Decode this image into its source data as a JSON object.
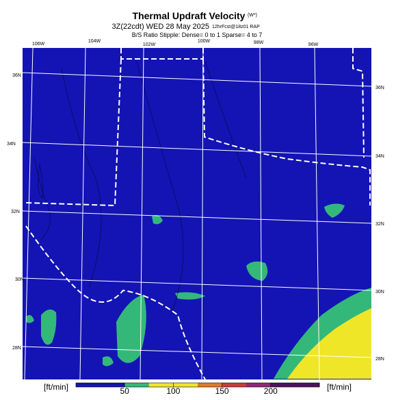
{
  "header": {
    "title": "Thermal Updraft Velocity",
    "title_unit": "(W*)",
    "subtitle_left": "3Z(22cdt) WED 28 May 2025",
    "subtitle_right": "12hrFcst@18z01 RAP",
    "note": "B/S Ratio Stipple: Dense= 0 to 1 Sparse= 4 to 7"
  },
  "map": {
    "lon_labels": [
      "106W",
      "104W",
      "102W",
      "100W",
      "98W",
      "96W"
    ],
    "lat_labels_left": [
      "36N",
      "34N",
      "32N",
      "30N",
      "28N"
    ],
    "lat_labels_right": [
      "36N",
      "34N",
      "32N",
      "30N",
      "28N"
    ]
  },
  "colorbar": {
    "unit": "[ft/min]",
    "range": [
      0,
      250
    ],
    "ticks": [
      50,
      100,
      150,
      200
    ],
    "colors": [
      "#1414b4",
      "#1414b4",
      "#34b87a",
      "#f0e628",
      "#f0e628",
      "#e07a28",
      "#c83c3c",
      "#902878",
      "#501060",
      "#501060"
    ]
  }
}
